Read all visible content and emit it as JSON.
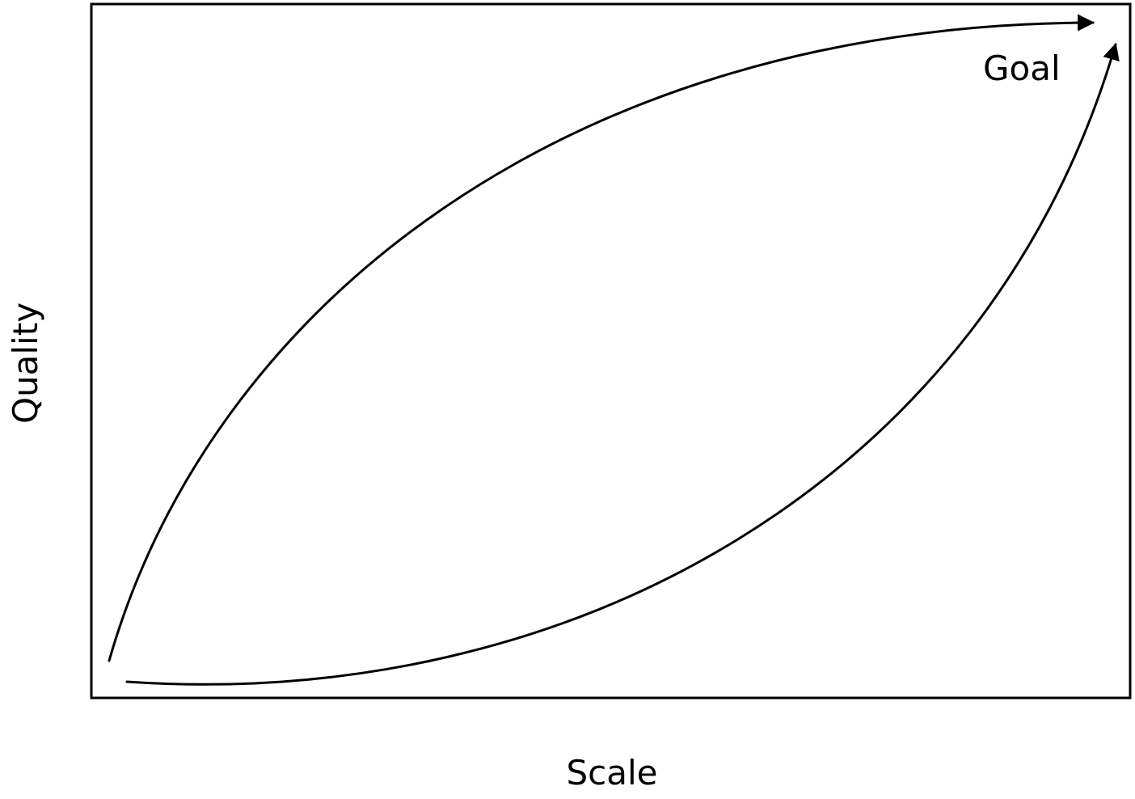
{
  "axes": {
    "x_label": "Scale",
    "y_label": "Quality"
  },
  "annotations": {
    "goal_label": "Goal"
  },
  "paths": [
    {
      "id": "quality-first-path"
    },
    {
      "id": "scale-first-path"
    }
  ],
  "colors": {
    "stroke": "#000000",
    "background": "#ffffff"
  }
}
